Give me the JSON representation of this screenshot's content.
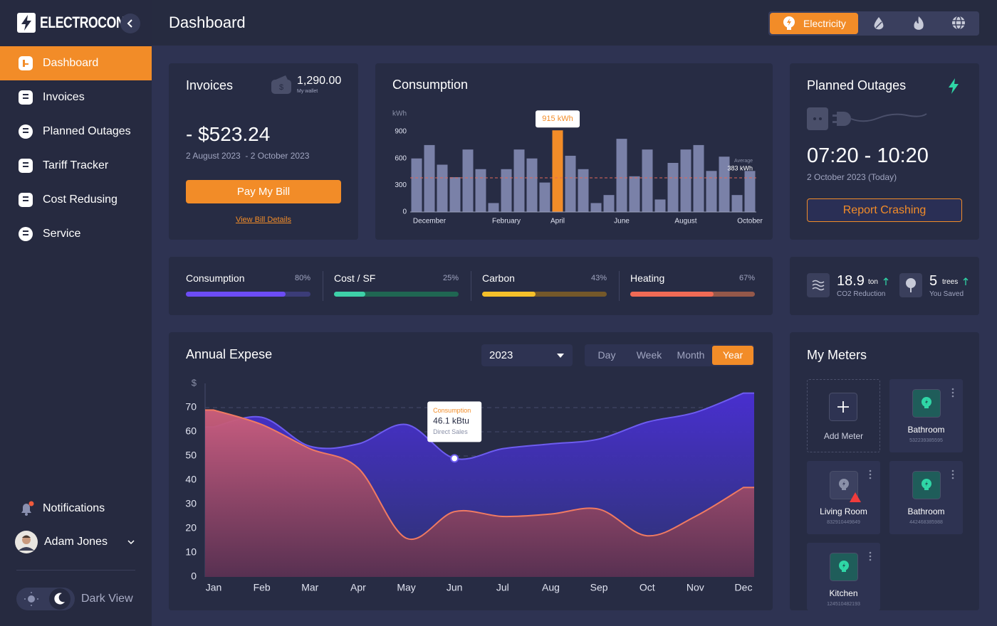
{
  "sidebar": {
    "brand": "ELECTROCON",
    "nav": [
      "Dashboard",
      "Invoices",
      "Planned Outages",
      "Tariff Tracker",
      "Cost Redusing",
      "Service"
    ],
    "active": 0,
    "notifications": "Notifications",
    "user": "Adam Jones",
    "theme": "Dark View"
  },
  "header": {
    "title": "Dashboard",
    "utility": "Electricity"
  },
  "invoices": {
    "title": "Invoices",
    "wallet": "1,290.00",
    "wallet_label": "My wallet",
    "amount": "- $523.24",
    "period": "2 August 2023  - 2 October 2023",
    "pay": "Pay My Bill",
    "details": "View Bill Details"
  },
  "outages": {
    "title": "Planned Outages",
    "time": "07:20 - 10:20",
    "date": "2 October 2023 (Today)",
    "button": "Report Crashing"
  },
  "metrics": {
    "categories": [
      "Consumption",
      "Cost / SF",
      "Carbon",
      "Heating"
    ],
    "values": [
      80,
      25,
      43,
      67
    ],
    "value_labels": [
      "80%",
      "25%",
      "43%",
      "67%"
    ],
    "colors": [
      "#6c4cf5",
      "#3ed0a8",
      "#f5c02a",
      "#f06a55"
    ],
    "track_colors": [
      "#3b3c78",
      "#1f6652",
      "#74582a",
      "#94584a"
    ]
  },
  "eco": [
    {
      "value": 18.9,
      "unit": "ton",
      "label": "CO2 Reduction"
    },
    {
      "value": 5,
      "unit": "trees",
      "label": "You Saved"
    }
  ],
  "meters": {
    "title": "My Meters",
    "add": "Add Meter",
    "items": [
      {
        "name": "Bathroom",
        "id": "532239385595",
        "alert": false
      },
      {
        "name": "Living Room",
        "id": "832910449849",
        "alert": true
      },
      {
        "name": "Bathroom",
        "id": "442468385988",
        "alert": false
      },
      {
        "name": "Kitchen",
        "id": "124510482193",
        "alert": false
      }
    ]
  },
  "annual_controls": {
    "year": "2023",
    "periods": [
      "Day",
      "Week",
      "Month",
      "Year"
    ],
    "active": 3
  },
  "chart_data": [
    {
      "type": "bar",
      "title": "Consumption",
      "y_label": "kWh",
      "categories": [
        null,
        "December",
        null,
        null,
        null,
        null,
        null,
        "February",
        null,
        null,
        null,
        "April",
        null,
        null,
        null,
        null,
        "June",
        null,
        null,
        null,
        null,
        "August",
        null,
        null,
        null,
        null,
        "October"
      ],
      "values": [
        600,
        750,
        530,
        390,
        700,
        480,
        100,
        480,
        700,
        600,
        330,
        915,
        630,
        480,
        100,
        190,
        820,
        400,
        700,
        140,
        550,
        700,
        750,
        460,
        620,
        190,
        460
      ],
      "color": "#7a81a8",
      "highlight": {
        "index": 11,
        "color": "#f28c28",
        "label": "915 kWh"
      },
      "average": {
        "value": 383,
        "label": "383 kWh",
        "text": "Average",
        "color": "#e0675a"
      },
      "ylim": [
        0,
        1100
      ],
      "yticks": [
        0,
        300,
        600,
        900
      ],
      "grid": false
    },
    {
      "type": "area",
      "title": "Annual Expese",
      "y_label": "$",
      "categories": [
        "Jan",
        "Feb",
        "Mar",
        "Apr",
        "May",
        "Jun",
        "Jul",
        "Aug",
        "Sep",
        "Oct",
        "Nov",
        "Dec"
      ],
      "series": [
        {
          "color": "#6d5cf0",
          "fill": [
            "#4a2fd6",
            "#2d3470"
          ],
          "values": [
            62,
            66,
            54,
            55,
            63,
            49,
            53,
            55,
            57,
            64,
            68,
            76
          ]
        },
        {
          "color": "#f07a62",
          "fill": [
            "#cf5f7c",
            "#5a3050"
          ],
          "values": [
            69,
            63,
            53,
            45,
            16,
            27,
            25,
            26,
            28,
            17,
            25,
            37
          ]
        }
      ],
      "tooltip": {
        "series": 0,
        "index": 5,
        "title": "Consumption",
        "value": "46.1 kBtu",
        "subtitle": "Direct Sales"
      },
      "ylim": [
        0,
        80
      ],
      "yticks": [
        0,
        10,
        20,
        30,
        40,
        50,
        60,
        70
      ],
      "grid": true
    }
  ]
}
